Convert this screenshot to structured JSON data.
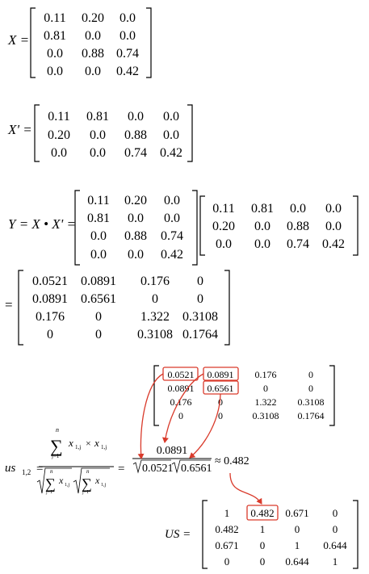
{
  "x_matrix": {
    "lhs": "X =",
    "rows": [
      [
        "0.11",
        "0.20",
        "0.0"
      ],
      [
        "0.81",
        "0.0",
        "0.0"
      ],
      [
        "0.0",
        "0.88",
        "0.74"
      ],
      [
        "0.0",
        "0.0",
        "0.42"
      ]
    ]
  },
  "xt_matrix": {
    "lhs": "X' =",
    "rows": [
      [
        "0.11",
        "0.81",
        "0.0",
        "0.0"
      ],
      [
        "0.20",
        "0.0",
        "0.88",
        "0.0"
      ],
      [
        "0.0",
        "0.0",
        "0.74",
        "0.42"
      ]
    ]
  },
  "product": {
    "lhs": "Y = X • X' =",
    "left_rows": [
      [
        "0.11",
        "0.20",
        "0.0"
      ],
      [
        "0.81",
        "0.0",
        "0.0"
      ],
      [
        "0.0",
        "0.88",
        "0.74"
      ],
      [
        "0.0",
        "0.0",
        "0.42"
      ]
    ],
    "right_rows": [
      [
        "0.11",
        "0.81",
        "0.0",
        "0.0"
      ],
      [
        "0.20",
        "0.0",
        "0.88",
        "0.0"
      ],
      [
        "0.0",
        "0.0",
        "0.74",
        "0.42"
      ]
    ]
  },
  "result": {
    "eq": "=",
    "rows": [
      [
        "0.0521",
        "0.0891",
        "0.176",
        "0"
      ],
      [
        "0.0891",
        "0.6561",
        "0",
        "0"
      ],
      [
        "0.176",
        "0",
        "1.322",
        "0.3108"
      ],
      [
        "0",
        "0",
        "0.3108",
        "0.1764"
      ]
    ]
  },
  "similarity": {
    "lhs_main": "us",
    "lhs_sub": "1,2",
    "eq1": "=",
    "eq2": "=",
    "sum_symbol": "∑",
    "sum_upper": "n",
    "sum_lower": "j=1",
    "x_var": "x",
    "x_sub": "1,j",
    "times": "×",
    "numerator": "0.0891",
    "sqrt_a": "0.0521",
    "sqrt_b": "0.6561",
    "approx": "≈ 0.482"
  },
  "us_matrix": {
    "lhs": "US =",
    "rows": [
      [
        "1",
        "0.482",
        "0.671",
        "0"
      ],
      [
        "0.482",
        "1",
        "0",
        "0"
      ],
      [
        "0.671",
        "0",
        "1",
        "0.644"
      ],
      [
        "0",
        "0",
        "0.644",
        "1"
      ]
    ]
  },
  "colors": {
    "highlight": "#d93a2b",
    "text": "#000000"
  }
}
